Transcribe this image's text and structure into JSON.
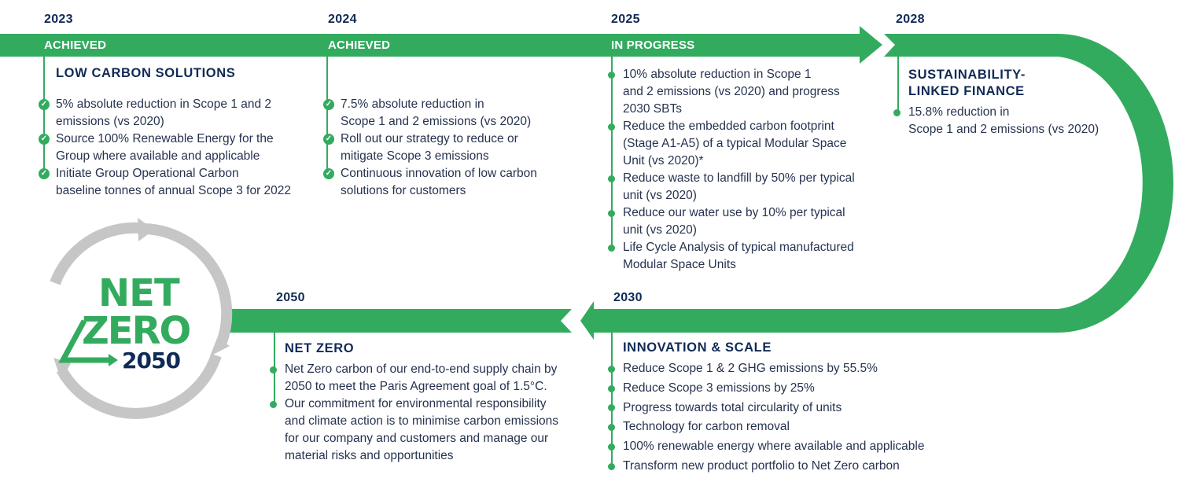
{
  "colors": {
    "green": "#33ab5f",
    "navy": "#102a56",
    "grey": "#c6c6c6",
    "text": "#26334f"
  },
  "logo": {
    "line1": "NET",
    "line2": "ZERO",
    "line3": "2050"
  },
  "milestones": [
    {
      "year": "2023",
      "status": "ACHIEVED",
      "heading": "LOW CARBON SOLUTIONS",
      "bullet_icon": "check-circle-icon",
      "items": [
        "5% absolute reduction in Scope 1 and 2|emissions (vs 2020)",
        "Source 100% Renewable Energy for the|Group where available and applicable",
        "Initiate Group Operational Carbon|baseline tonnes of annual Scope 3 for 2022"
      ]
    },
    {
      "year": "2024",
      "status": "ACHIEVED",
      "bullet_icon": "check-circle-icon",
      "items": [
        "7.5% absolute reduction in|Scope 1 and 2 emissions (vs 2020)",
        "Roll out our strategy to reduce or|mitigate Scope 3 emissions",
        "Continuous innovation of low carbon|solutions for customers"
      ]
    },
    {
      "year": "2025",
      "status": "IN PROGRESS",
      "bullet_icon": "dot-icon",
      "items": [
        "10% absolute reduction in Scope 1|and 2 emissions (vs 2020) and progress|2030 SBTs",
        "Reduce the embedded carbon footprint|(Stage A1-A5) of a typical Modular Space|Unit (vs 2020)*",
        "Reduce waste to landfill by 50% per typical|unit (vs 2020)",
        "Reduce our water use by 10% per typical|unit (vs 2020)",
        "Life Cycle Analysis of typical manufactured|Modular Space Units"
      ]
    },
    {
      "year": "2028",
      "heading": "SUSTAINABILITY-|LINKED FINANCE",
      "bullet_icon": "dot-icon",
      "items": [
        "15.8% reduction in|Scope 1 and 2 emissions (vs 2020)"
      ]
    },
    {
      "year": "2030",
      "heading": "INNOVATION & SCALE",
      "bullet_icon": "dot-icon",
      "items": [
        "Reduce Scope 1 & 2 GHG emissions by 55.5%",
        "Reduce Scope 3 emissions by 25%",
        "Progress towards total circularity of units",
        "Technology for carbon removal",
        "100% renewable energy where available and applicable",
        "Transform new product portfolio to Net Zero carbon"
      ]
    },
    {
      "year": "2050",
      "heading": "NET ZERO",
      "bullet_icon": "dot-icon",
      "items": [
        "Net Zero carbon of our end-to-end supply chain by|2050 to meet the Paris Agreement goal of 1.5°C.",
        "Our commitment for environmental responsibility|and climate action is to minimise carbon emissions|for our company and customers and manage our|material risks and opportunities"
      ]
    }
  ]
}
